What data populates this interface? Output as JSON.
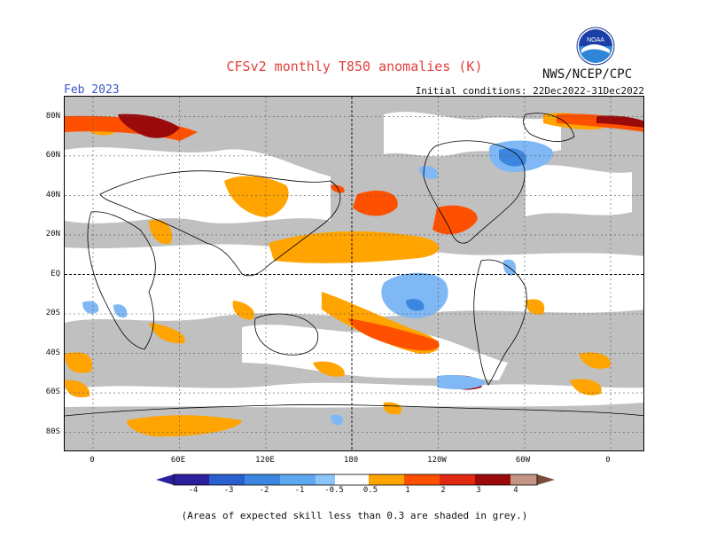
{
  "header": {
    "title": "CFSv2 monthly T850 anomalies (K)",
    "period": "Feb 2023",
    "organization": "NWS/NCEP/CPC",
    "initial_conditions": "Initial conditions: 22Dec2022-31Dec2022",
    "logo_text": "NOAA"
  },
  "axes": {
    "lat_labels": [
      "80N",
      "60N",
      "40N",
      "20N",
      "EQ",
      "20S",
      "40S",
      "60S",
      "80S"
    ],
    "lon_labels": [
      "0",
      "60E",
      "120E",
      "180",
      "120W",
      "60W",
      "0"
    ]
  },
  "colorbar": {
    "labels": [
      "-4",
      "-3",
      "-2",
      "-1",
      "-0.5",
      "0.5",
      "1",
      "2",
      "3",
      "4"
    ],
    "colors": [
      "#2c1f9e",
      "#2a5fd0",
      "#3d86e0",
      "#5ea8f0",
      "#8cc6f8",
      "#ffffff",
      "#ffa400",
      "#ff5000",
      "#e02810",
      "#9a0a0a",
      "#c49484",
      "#7a4a3a"
    ]
  },
  "colors": {
    "grey_low_skill": "#c0c0c0",
    "warm_1": "#ffa400",
    "warm_2": "#ff5000",
    "warm_3": "#9a0a0a",
    "cool_1": "#7fb8f5",
    "cool_2": "#3d86e0",
    "title_color": "#e2403a",
    "period_color": "#3a55c8"
  },
  "footnote": "(Areas of expected skill less than 0.3 are shaded in grey.)"
}
